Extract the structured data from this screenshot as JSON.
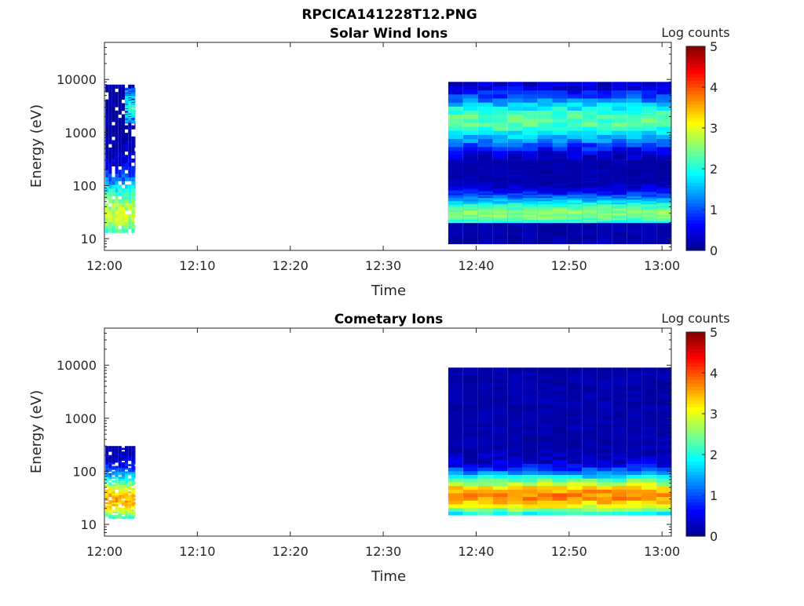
{
  "figure": {
    "title": "RPCICA141228T12.PNG"
  },
  "colors": {
    "colormap": [
      "#00008f",
      "#0000ff",
      "#0080ff",
      "#00ffff",
      "#80ff80",
      "#ffff00",
      "#ff8000",
      "#ff0000",
      "#800000"
    ]
  },
  "chart_data": [
    {
      "type": "heatmap",
      "title": "Solar Wind Ions",
      "xlabel": "Time",
      "ylabel": "Energy (eV)",
      "x_ticks": [
        "12:00",
        "12:10",
        "12:20",
        "12:30",
        "12:40",
        "12:50",
        "13:00"
      ],
      "y_ticks": [
        "10",
        "100",
        "1000",
        "10000"
      ],
      "y_scale": "log",
      "ylim": [
        6,
        50000
      ],
      "colorbar": {
        "label": "Log counts",
        "ticks": [
          "0",
          "1",
          "2",
          "3",
          "4",
          "5"
        ],
        "range": [
          0,
          5
        ]
      },
      "time_range_minutes": [
        0,
        61
      ],
      "blocks": [
        {
          "t0": 0.1,
          "t1": 3.3,
          "e0": 13,
          "e1": 8000,
          "peak_level": 2.8,
          "peak_energy": 30,
          "width": 0.5
        },
        {
          "t0": 2.2,
          "t1": 3.3,
          "e0": 1500,
          "e1": 7000,
          "peak_level": 2.0,
          "peak_energy": 3000,
          "width": 0.3
        },
        {
          "t0": 37.0,
          "t1": 61.0,
          "e0": 8,
          "e1": 9000,
          "peak_level": 2.3,
          "peak_energy": 1700,
          "width": 0.35
        },
        {
          "t0": 37.0,
          "t1": 61.0,
          "e0": 20,
          "e1": 300,
          "peak_level": 2.5,
          "peak_energy": 30,
          "width": 0.25
        }
      ]
    },
    {
      "type": "heatmap",
      "title": "Cometary Ions",
      "xlabel": "Time",
      "ylabel": "Energy (eV)",
      "x_ticks": [
        "12:00",
        "12:10",
        "12:20",
        "12:30",
        "12:40",
        "12:50",
        "13:00"
      ],
      "y_ticks": [
        "10",
        "100",
        "1000",
        "10000"
      ],
      "y_scale": "log",
      "ylim": [
        6,
        50000
      ],
      "colorbar": {
        "label": "Log counts",
        "ticks": [
          "0",
          "1",
          "2",
          "3",
          "4",
          "5"
        ],
        "range": [
          0,
          5
        ]
      },
      "time_range_minutes": [
        0,
        61
      ],
      "blocks": [
        {
          "t0": 0.1,
          "t1": 3.3,
          "e0": 13,
          "e1": 300,
          "peak_level": 3.5,
          "peak_energy": 30,
          "width": 0.35
        },
        {
          "t0": 37.0,
          "t1": 61.0,
          "e0": 15,
          "e1": 9000,
          "peak_level": 3.7,
          "peak_energy": 35,
          "width": 0.3
        }
      ]
    }
  ]
}
